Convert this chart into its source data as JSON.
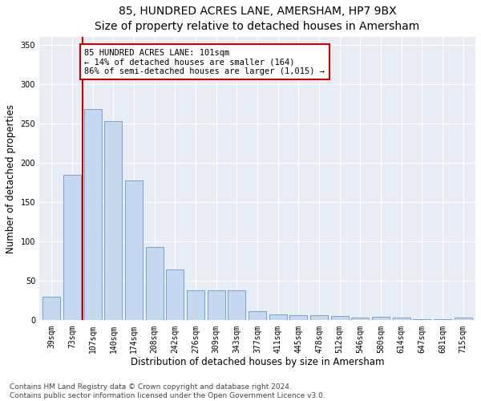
{
  "title": "85, HUNDRED ACRES LANE, AMERSHAM, HP7 9BX",
  "subtitle": "Size of property relative to detached houses in Amersham",
  "xlabel": "Distribution of detached houses by size in Amersham",
  "ylabel": "Number of detached properties",
  "bar_labels": [
    "39sqm",
    "73sqm",
    "107sqm",
    "140sqm",
    "174sqm",
    "208sqm",
    "242sqm",
    "276sqm",
    "309sqm",
    "343sqm",
    "377sqm",
    "411sqm",
    "445sqm",
    "478sqm",
    "512sqm",
    "546sqm",
    "580sqm",
    "614sqm",
    "647sqm",
    "681sqm",
    "715sqm"
  ],
  "bar_values": [
    30,
    185,
    268,
    253,
    178,
    93,
    65,
    38,
    38,
    38,
    12,
    8,
    7,
    7,
    5,
    3,
    4,
    3,
    1,
    1,
    3
  ],
  "bar_color": "#c5d8f0",
  "bar_edge_color": "#6699cc",
  "vline_x": 1.5,
  "vline_color": "#cc0000",
  "annotation_text": "85 HUNDRED ACRES LANE: 101sqm\n← 14% of detached houses are smaller (164)\n86% of semi-detached houses are larger (1,015) →",
  "annotation_box_facecolor": "#ffffff",
  "annotation_box_edgecolor": "#cc0000",
  "ylim": [
    0,
    360
  ],
  "yticks": [
    0,
    50,
    100,
    150,
    200,
    250,
    300,
    350
  ],
  "plot_bg_color": "#e8edf5",
  "footer_line1": "Contains HM Land Registry data © Crown copyright and database right 2024.",
  "footer_line2": "Contains public sector information licensed under the Open Government Licence v3.0.",
  "title_fontsize": 10,
  "subtitle_fontsize": 9,
  "xlabel_fontsize": 8.5,
  "ylabel_fontsize": 8.5,
  "tick_fontsize": 7,
  "annotation_fontsize": 7.5,
  "footer_fontsize": 6.5
}
